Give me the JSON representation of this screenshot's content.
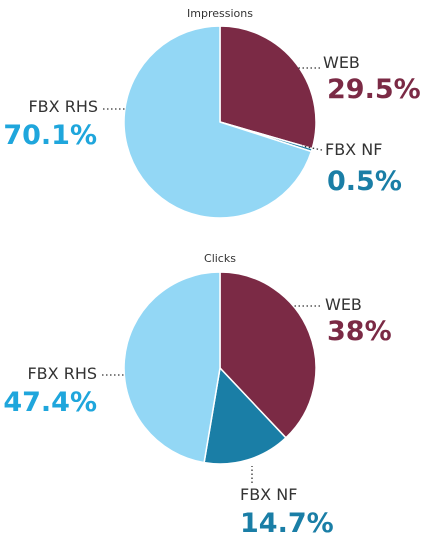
{
  "colors": {
    "web": "#7b2a45",
    "fbx_nf": "#1a7ea6",
    "fbx_rhs": "#93d7f5",
    "fbx_rhs_text": "#1fa6dc"
  },
  "chart_data": [
    {
      "type": "pie",
      "title": "Impressions",
      "slices": [
        {
          "label": "WEB",
          "value": 29.5,
          "display": "29.5%",
          "color": "#7b2a45",
          "text_color": "#7b2a45"
        },
        {
          "label": "FBX NF",
          "value": 0.5,
          "display": "0.5%",
          "color": "#1a7ea6",
          "text_color": "#1a7ea6"
        },
        {
          "label": "FBX RHS",
          "value": 70.1,
          "display": "70.1%",
          "color": "#93d7f5",
          "text_color": "#1fa6dc"
        }
      ]
    },
    {
      "type": "pie",
      "title": "Clicks",
      "slices": [
        {
          "label": "WEB",
          "value": 38,
          "display": "38%",
          "color": "#7b2a45",
          "text_color": "#7b2a45"
        },
        {
          "label": "FBX NF",
          "value": 14.7,
          "display": "14.7%",
          "color": "#1a7ea6",
          "text_color": "#1a7ea6"
        },
        {
          "label": "FBX RHS",
          "value": 47.4,
          "display": "47.4%",
          "color": "#93d7f5",
          "text_color": "#1fa6dc"
        }
      ]
    }
  ]
}
